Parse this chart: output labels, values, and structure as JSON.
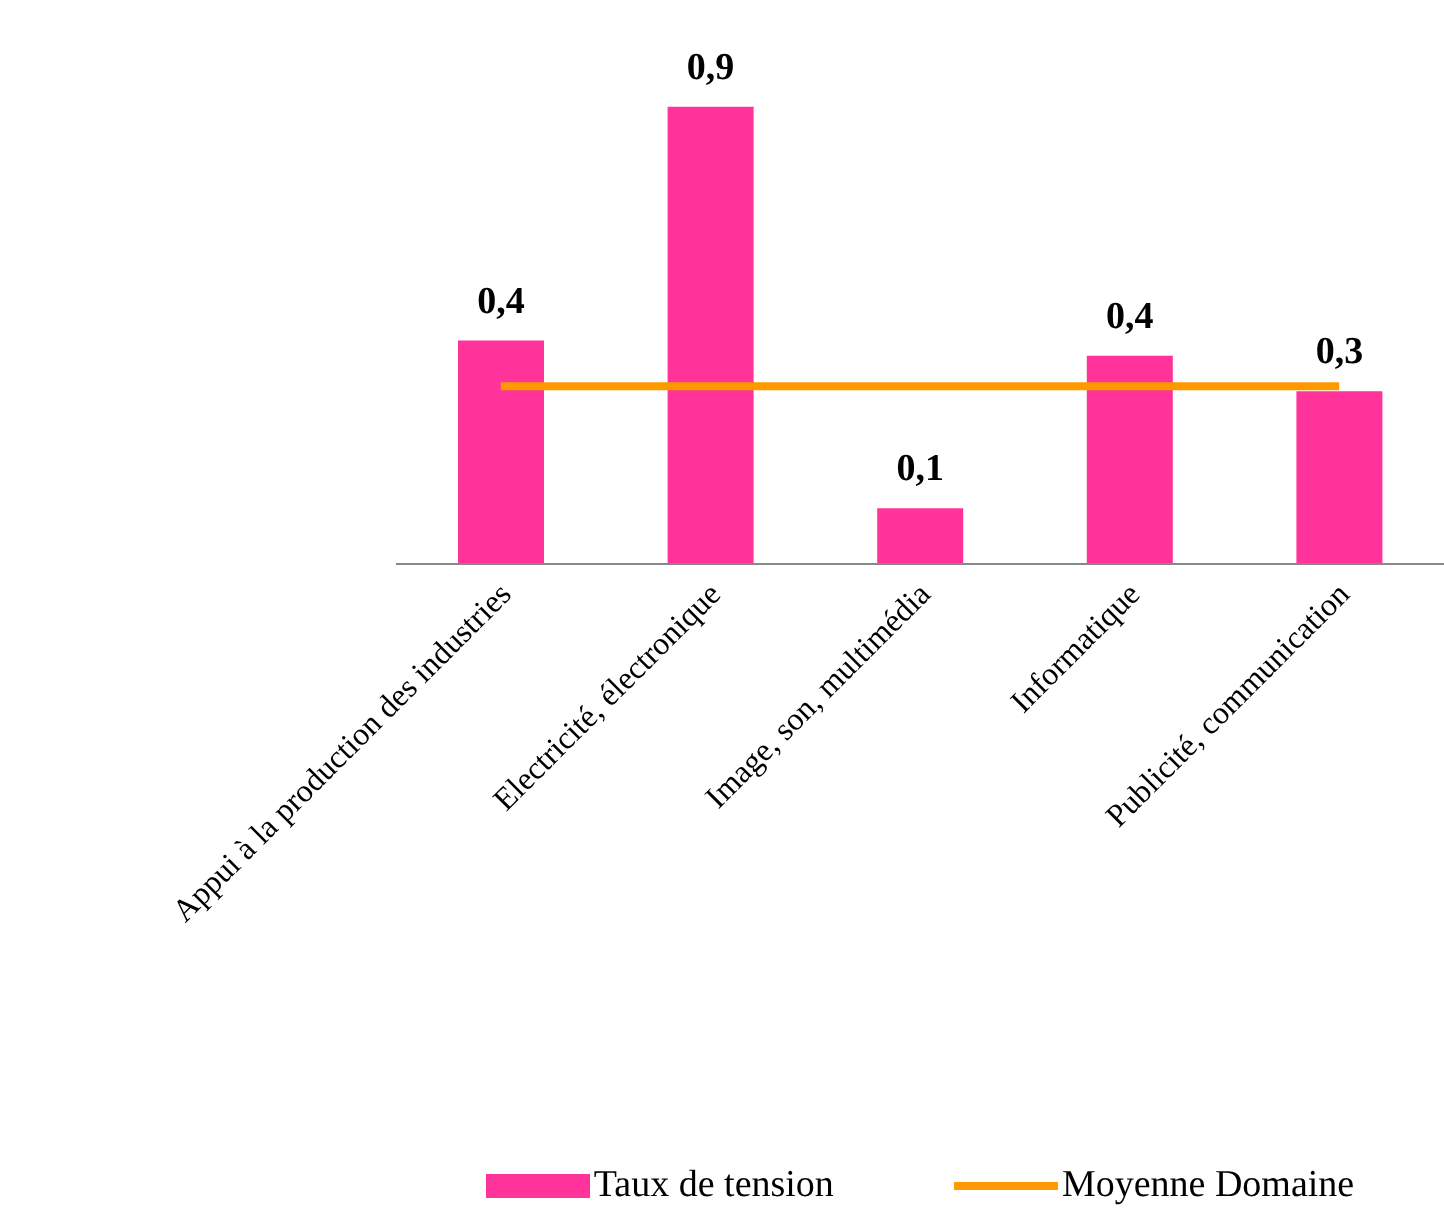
{
  "chart_data": {
    "type": "bar",
    "categories": [
      "Appui à la production des industries",
      "Electricité, électronique",
      "Image, son, multimédia",
      "Informatique",
      "Publicité, communication"
    ],
    "series": [
      {
        "name": "Taux de tension",
        "color": "#ff3399",
        "values": [
          0.44,
          0.9,
          0.11,
          0.41,
          0.34
        ],
        "value_labels": [
          "0,4",
          "0,9",
          "0,1",
          "0,4",
          "0,3"
        ]
      },
      {
        "name": "Moyenne Domaine",
        "type": "line",
        "color": "#ff9900",
        "values": [
          0.35,
          0.35,
          0.35,
          0.35,
          0.35
        ]
      }
    ],
    "grid": false,
    "legend": "bottom",
    "marker": "none"
  }
}
